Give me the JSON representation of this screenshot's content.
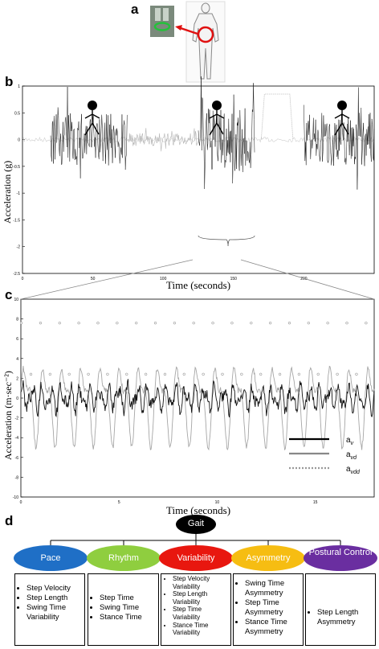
{
  "panels": {
    "a": "a",
    "b": "b",
    "c": "c",
    "d": "d"
  },
  "colors": {
    "pace": "#1f6fc6",
    "rhythm": "#8fce3f",
    "variability": "#e8170f",
    "asymmetry": "#f6bd12",
    "postural": "#6a2ea0",
    "gait": "#000000",
    "signal_dark": "#111111",
    "signal_grey": "#a6a6a6"
  },
  "chart_data": [
    {
      "type": "line",
      "panel": "b",
      "xlabel": "Time (seconds)",
      "ylabel": "Acceleration (g)",
      "ylim": [
        -2.5,
        1.0
      ],
      "yticks": [
        "1",
        "0.5",
        "0",
        "-0.5",
        "-1",
        "-1.5",
        "-2",
        "-2.5"
      ],
      "xticks": [
        "0",
        "50",
        "100",
        "150",
        "200"
      ],
      "xlim": [
        0,
        250
      ],
      "segments": [
        {
          "activity": "walking",
          "x_start": 20,
          "x_end": 75,
          "amplitude": 0.5
        },
        {
          "activity": "low activity",
          "x_start": 75,
          "x_end": 125,
          "amplitude": 0.12
        },
        {
          "activity": "walking",
          "x_start": 125,
          "x_end": 165,
          "amplitude": 0.6
        },
        {
          "activity": "plateau",
          "x_start": 172,
          "x_end": 190,
          "level": 0.85
        },
        {
          "activity": "walking",
          "x_start": 200,
          "x_end": 250,
          "amplitude": 0.5
        }
      ],
      "grid": false
    },
    {
      "type": "line",
      "panel": "c",
      "xlabel": "Time (seconds)",
      "ylabel": "Acceleration (m·sec⁻²)",
      "ylim": [
        -10,
        10
      ],
      "yticks": [
        "10",
        "8",
        "6",
        "4",
        "2",
        "0",
        "-2",
        "-4",
        "-6",
        "-8",
        "-10"
      ],
      "xticks": [
        "0",
        "5",
        "10",
        "15"
      ],
      "xlim": [
        0,
        18
      ],
      "legend": {
        "placement": "bottom-right",
        "entries": [
          {
            "name": "a",
            "sub": "v",
            "style": "solid-black"
          },
          {
            "name": "a",
            "sub": "vd",
            "style": "solid-grey"
          },
          {
            "name": "a",
            "sub": "vdd",
            "style": "dotted-grey"
          }
        ]
      },
      "grid": false
    }
  ],
  "diagram": {
    "root": "Gait",
    "domains": [
      {
        "label": "Pace",
        "items": [
          "Step Velocity",
          "Step Length",
          "Swing Time Variability"
        ]
      },
      {
        "label": "Rhythm",
        "items": [
          "Step Time",
          "Swing Time",
          "Stance Time"
        ]
      },
      {
        "label": "Variability",
        "items": [
          "Step Velocity Variability",
          "Step Length Variability",
          "Step Time Variability",
          "Stance Time Variability"
        ]
      },
      {
        "label": "Asymmetry",
        "items": [
          "Swing Time Asymmetry",
          "Step Time Asymmetry",
          "Stance Time Asymmetry"
        ]
      },
      {
        "label": "Postural Control",
        "items": [
          "Step Length Asymmetry"
        ]
      }
    ]
  }
}
